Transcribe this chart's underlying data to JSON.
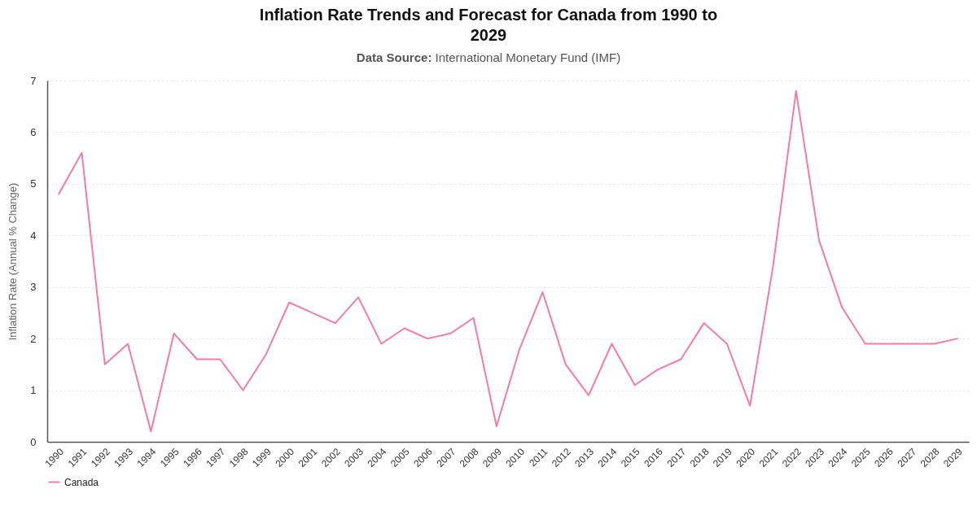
{
  "chart_data": {
    "type": "line",
    "title": "Inflation Rate Trends and Forecast for Canada from 1990 to 2029",
    "subtitle": "Data Source: International Monetary Fund (IMF)",
    "ylabel": "Inflation Rate (Annual % Change)",
    "categories": [
      "1990",
      "1991",
      "1992",
      "1993",
      "1994",
      "1995",
      "1996",
      "1997",
      "1998",
      "1999",
      "2000",
      "2001",
      "2002",
      "2003",
      "2004",
      "2005",
      "2006",
      "2007",
      "2008",
      "2009",
      "2010",
      "2011",
      "2012",
      "2013",
      "2014",
      "2015",
      "2016",
      "2017",
      "2018",
      "2019",
      "2020",
      "2021",
      "2022",
      "2023",
      "2024",
      "2025",
      "2026",
      "2027",
      "2028",
      "2029"
    ],
    "series": [
      {
        "name": "Canada",
        "color": "#f47ca6",
        "values": [
          4.8,
          5.6,
          1.5,
          1.9,
          0.2,
          2.1,
          1.6,
          1.6,
          1.0,
          1.7,
          2.7,
          2.5,
          2.3,
          2.8,
          1.9,
          2.2,
          2.0,
          2.1,
          2.4,
          0.3,
          1.8,
          2.9,
          1.5,
          0.9,
          1.9,
          1.1,
          1.4,
          1.6,
          2.3,
          1.9,
          0.7,
          3.4,
          6.8,
          3.9,
          2.6,
          1.9,
          1.9,
          1.9,
          1.9,
          2.0
        ]
      }
    ],
    "ylim": [
      0,
      7
    ],
    "yticks": [
      0,
      1,
      2,
      3,
      4,
      5,
      6,
      7
    ],
    "grid": "y",
    "legend": "bottom",
    "line_style": "solid"
  }
}
